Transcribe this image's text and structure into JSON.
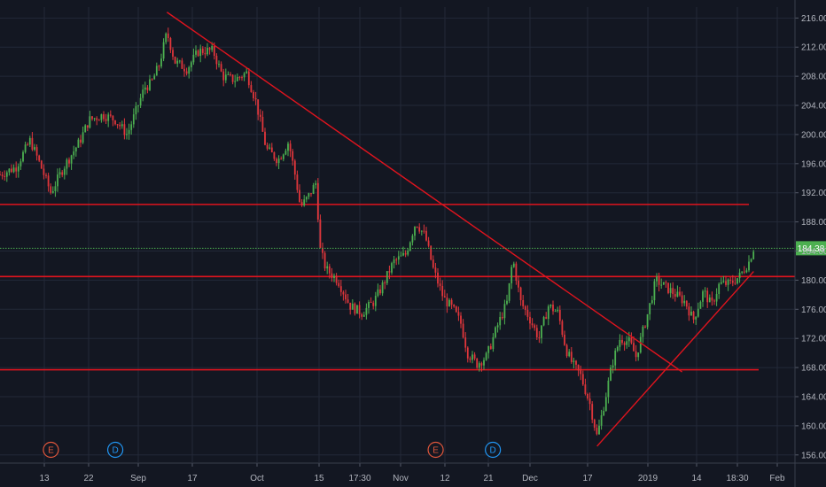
{
  "chart_data": {
    "type": "candlestick",
    "title": "",
    "xlabel": "",
    "ylabel": "",
    "grid": true,
    "ylim": [
      155,
      217.5
    ],
    "y_ticks": [
      {
        "label": "216.00",
        "value": 216
      },
      {
        "label": "212.00",
        "value": 212
      },
      {
        "label": "208.00",
        "value": 208
      },
      {
        "label": "204.00",
        "value": 204
      },
      {
        "label": "200.00",
        "value": 200
      },
      {
        "label": "196.00",
        "value": 196
      },
      {
        "label": "192.00",
        "value": 192
      },
      {
        "label": "188.00",
        "value": 188
      },
      {
        "label": "184.00",
        "value": 184
      },
      {
        "label": "180.00",
        "value": 180
      },
      {
        "label": "176.00",
        "value": 176
      },
      {
        "label": "172.00",
        "value": 172
      },
      {
        "label": "168.00",
        "value": 168
      },
      {
        "label": "164.00",
        "value": 164
      },
      {
        "label": "160.00",
        "value": 160
      },
      {
        "label": "156.00",
        "value": 156
      }
    ],
    "x_ticks": [
      "13",
      "22",
      "Sep",
      "17",
      "Oct",
      "15",
      "17:30",
      "Nov",
      "12",
      "21",
      "Dec",
      "17",
      "2019",
      "14",
      "18:30",
      "Feb"
    ],
    "last_price": {
      "label": "184.38",
      "value": 184.38,
      "color": "#4caf50"
    },
    "horizontal_levels": [
      {
        "value": 190.4,
        "color": "#e0141e"
      },
      {
        "value": 180.5,
        "color": "#e0141e"
      },
      {
        "value": 167.7,
        "color": "#e0141e"
      }
    ],
    "trend_lines": [
      {
        "from": {
          "x": 0.21,
          "y": 216.8
        },
        "to": {
          "x": 0.858,
          "y": 167.4
        },
        "color": "#e0141e"
      },
      {
        "from": {
          "x": 0.751,
          "y": 157.2
        },
        "to": {
          "x": 0.948,
          "y": 181.2
        },
        "color": "#e0141e"
      }
    ],
    "event_markers": [
      {
        "label": "E",
        "x": 0.064,
        "color": "#e0563b"
      },
      {
        "label": "D",
        "x": 0.145,
        "color": "#2196f3"
      },
      {
        "label": "E",
        "x": 0.548,
        "color": "#e0563b"
      },
      {
        "label": "D",
        "x": 0.62,
        "color": "#2196f3"
      }
    ],
    "series": [
      {
        "name": "",
        "up_color": "#4caf50",
        "down_color": "#e0363b",
        "path": [
          [
            0.0,
            194.5
          ],
          [
            0.02,
            195.5
          ],
          [
            0.038,
            199.2
          ],
          [
            0.05,
            196.0
          ],
          [
            0.064,
            192.0
          ],
          [
            0.08,
            195.5
          ],
          [
            0.1,
            199.0
          ],
          [
            0.112,
            202.0
          ],
          [
            0.13,
            202.7
          ],
          [
            0.145,
            202.0
          ],
          [
            0.16,
            200.0
          ],
          [
            0.172,
            203.5
          ],
          [
            0.182,
            206.5
          ],
          [
            0.19,
            207.0
          ],
          [
            0.2,
            209.5
          ],
          [
            0.21,
            214.0
          ],
          [
            0.22,
            210.0
          ],
          [
            0.235,
            209.0
          ],
          [
            0.25,
            211.5
          ],
          [
            0.268,
            211.5
          ],
          [
            0.28,
            208.0
          ],
          [
            0.295,
            207.5
          ],
          [
            0.31,
            208.5
          ],
          [
            0.322,
            204.5
          ],
          [
            0.335,
            198.0
          ],
          [
            0.35,
            196.5
          ],
          [
            0.363,
            199.0
          ],
          [
            0.372,
            194.0
          ],
          [
            0.378,
            190.0
          ],
          [
            0.388,
            191.5
          ],
          [
            0.398,
            193.5
          ],
          [
            0.402,
            184.5
          ],
          [
            0.41,
            181.5
          ],
          [
            0.425,
            180.0
          ],
          [
            0.44,
            176.5
          ],
          [
            0.455,
            175.5
          ],
          [
            0.47,
            177.0
          ],
          [
            0.48,
            179.0
          ],
          [
            0.495,
            182.5
          ],
          [
            0.51,
            183.5
          ],
          [
            0.523,
            188.0
          ],
          [
            0.535,
            186.0
          ],
          [
            0.545,
            181.5
          ],
          [
            0.558,
            177.5
          ],
          [
            0.57,
            176.0
          ],
          [
            0.58,
            174.0
          ],
          [
            0.588,
            170.0
          ],
          [
            0.6,
            168.5
          ],
          [
            0.612,
            169.5
          ],
          [
            0.625,
            173.5
          ],
          [
            0.638,
            177.0
          ],
          [
            0.645,
            183.0
          ],
          [
            0.655,
            177.0
          ],
          [
            0.665,
            175.0
          ],
          [
            0.678,
            172.0
          ],
          [
            0.69,
            176.5
          ],
          [
            0.702,
            175.5
          ],
          [
            0.712,
            170.5
          ],
          [
            0.72,
            168.5
          ],
          [
            0.73,
            167.0
          ],
          [
            0.742,
            163.0
          ],
          [
            0.751,
            158.5
          ],
          [
            0.76,
            163.0
          ],
          [
            0.77,
            168.5
          ],
          [
            0.78,
            172.0
          ],
          [
            0.792,
            171.5
          ],
          [
            0.8,
            169.5
          ],
          [
            0.815,
            175.5
          ],
          [
            0.825,
            180.0
          ],
          [
            0.838,
            179.0
          ],
          [
            0.85,
            178.0
          ],
          [
            0.862,
            177.0
          ],
          [
            0.872,
            174.5
          ],
          [
            0.885,
            178.5
          ],
          [
            0.895,
            176.5
          ],
          [
            0.905,
            179.5
          ],
          [
            0.918,
            179.5
          ],
          [
            0.93,
            180.5
          ],
          [
            0.942,
            182.5
          ],
          [
            0.948,
            184.4
          ]
        ]
      }
    ]
  }
}
